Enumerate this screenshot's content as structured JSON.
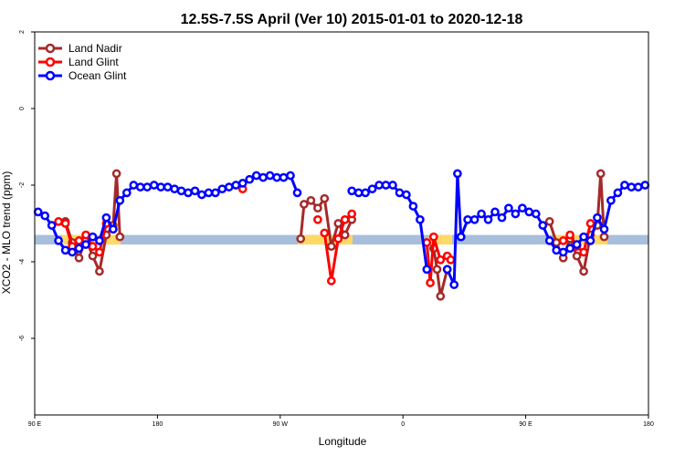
{
  "chart_data": {
    "type": "line",
    "title": "12.5S-7.5S April (Ver 10)   2015-01-01 to 2020-12-18",
    "xlabel": "Longitude",
    "ylabel": "XCO2 - MLO trend (ppm)",
    "x_axis": {
      "ticks": [
        {
          "value": 90,
          "label": "90 E"
        },
        {
          "value": 180,
          "label": "180"
        },
        {
          "value": 270,
          "label": "90 W"
        },
        {
          "value": 360,
          "label": "0"
        },
        {
          "value": 450,
          "label": "90 E"
        },
        {
          "value": 540,
          "label": "180"
        }
      ],
      "xlim": [
        90,
        540
      ]
    },
    "y_axis": {
      "ticks": [
        {
          "value": 2,
          "label": "2"
        },
        {
          "value": 0,
          "label": "0"
        },
        {
          "value": -2,
          "label": "-2"
        },
        {
          "value": -4,
          "label": "-4"
        },
        {
          "value": -6,
          "label": "-6"
        }
      ],
      "ylim": [
        -8,
        2
      ]
    },
    "grid": false,
    "legend": "top-left",
    "colors": {
      "land_nadir": "#a52a2a",
      "land_glint": "#ff0000",
      "ocean_glint": "#0000ff",
      "ocean_band": "#a8bfdc",
      "land_band": "#ffd966"
    },
    "background_bands": [
      {
        "surface": "ocean",
        "x_start": 90,
        "x_end": 540,
        "y_min": -3.55,
        "y_max": -3.3
      },
      {
        "surface": "land",
        "x_start": 110,
        "x_end": 153,
        "y_min": -3.55,
        "y_max": -3.3
      },
      {
        "surface": "land",
        "x_start": 283,
        "x_end": 323,
        "y_min": -3.55,
        "y_max": -3.3
      },
      {
        "surface": "land",
        "x_start": 379,
        "x_end": 396,
        "y_min": -3.55,
        "y_max": -3.3
      },
      {
        "surface": "land",
        "x_start": 470,
        "x_end": 510,
        "y_min": -3.55,
        "y_max": -3.3
      }
    ],
    "series": [
      {
        "name": "Land Nadir",
        "segments": [
          {
            "x": [
              112.5,
              117.5,
              122.5,
              127.5,
              132.5,
              137.5,
              142.5,
              147.5,
              150,
              152.5
            ],
            "y": [
              -2.95,
              -3.5,
              -3.9,
              -3.4,
              -3.85,
              -4.25,
              -3.3,
              -3.05,
              -1.7,
              -3.35
            ]
          },
          {
            "x": [
              285,
              287.5,
              292.5,
              297.5,
              302.5,
              307.5,
              312.5,
              317.5,
              322.5
            ],
            "y": [
              -3.4,
              -2.5,
              -2.4,
              -2.6,
              -2.35,
              -3.6,
              -3.0,
              -3.3,
              -2.9
            ]
          },
          {
            "x": [
              382.5,
              385,
              387.5,
              392.5
            ],
            "y": [
              -3.65,
              -4.2,
              -4.9,
              -4.2
            ]
          },
          {
            "x": [
              467.5,
              472.5,
              477.5,
              482.5,
              487.5,
              492.5,
              497.5,
              502.5,
              505,
              507.5
            ],
            "y": [
              -2.95,
              -3.5,
              -3.9,
              -3.4,
              -3.85,
              -4.25,
              -3.3,
              -3.05,
              -1.7,
              -3.35
            ]
          }
        ]
      },
      {
        "name": "Land Glint",
        "segments": [
          {
            "x": [
              107.5,
              112.5,
              117.5,
              122.5,
              127.5,
              132.5,
              137.5,
              142.5
            ],
            "y": [
              -2.95,
              -3.0,
              -3.6,
              -3.45,
              -3.3,
              -3.6,
              -3.75,
              -3.0
            ]
          },
          {
            "x": [
              242.5
            ],
            "y": [
              -2.1
            ]
          },
          {
            "x": [
              297.5
            ],
            "y": [
              -2.9
            ]
          },
          {
            "x": [
              302.5,
              307.5,
              312.5,
              317.5,
              322.5
            ],
            "y": [
              -3.25,
              -4.5,
              -3.4,
              -2.9,
              -2.75
            ]
          },
          {
            "x": [
              377.5,
              380,
              382.5,
              387.5,
              392.5,
              395
            ],
            "y": [
              -3.5,
              -4.55,
              -3.35,
              -3.95,
              -3.85,
              -3.95
            ]
          },
          {
            "x": [
              477.5,
              482.5,
              487.5,
              492.5,
              497.5
            ],
            "y": [
              -3.45,
              -3.3,
              -3.6,
              -3.75,
              -3.0
            ]
          }
        ]
      },
      {
        "name": "Ocean Glint",
        "segments": [
          {
            "x": [
              92.5,
              97.5,
              102.5,
              107.5,
              112.5,
              117.5,
              122.5,
              127.5,
              132.5,
              137.5,
              142.5,
              147.5,
              152.5,
              157.5,
              162.5,
              167.5,
              172.5,
              177.5,
              182.5,
              187.5,
              192.5,
              197.5,
              202.5,
              207.5,
              212.5,
              217.5,
              222.5,
              227.5,
              232.5,
              237.5,
              242.5,
              247.5,
              252.5,
              257.5,
              262.5,
              267.5,
              272.5,
              277.5,
              282.5
            ],
            "y": [
              -2.7,
              -2.8,
              -3.05,
              -3.45,
              -3.7,
              -3.75,
              -3.65,
              -3.55,
              -3.35,
              -3.45,
              -2.85,
              -3.15,
              -2.4,
              -2.2,
              -2.0,
              -2.05,
              -2.05,
              -2.0,
              -2.05,
              -2.05,
              -2.1,
              -2.15,
              -2.2,
              -2.15,
              -2.25,
              -2.2,
              -2.2,
              -2.1,
              -2.05,
              -2.0,
              -1.95,
              -1.85,
              -1.75,
              -1.8,
              -1.75,
              -1.8,
              -1.8,
              -1.75,
              -2.2
            ]
          },
          {
            "x": [
              322.5,
              327.5,
              332.5,
              337.5,
              342.5,
              347.5,
              352.5,
              357.5,
              362.5,
              367.5,
              372.5,
              377.5
            ],
            "y": [
              -2.15,
              -2.2,
              -2.2,
              -2.1,
              -2.0,
              -2.0,
              -2.0,
              -2.2,
              -2.25,
              -2.55,
              -2.9,
              -4.2
            ]
          },
          {
            "x": [
              392.5,
              397.5,
              400,
              402.5
            ],
            "y": [
              -4.2,
              -4.6,
              -1.7,
              -3.35
            ]
          },
          {
            "x": [
              402.5,
              407.5,
              412.5,
              417.5,
              422.5,
              427.5,
              432.5,
              437.5,
              442.5,
              447.5,
              452.5,
              457.5,
              462.5,
              467.5,
              472.5,
              477.5,
              482.5,
              487.5,
              492.5,
              497.5,
              502.5,
              507.5,
              512.5,
              517.5,
              522.5,
              527.5,
              532.5,
              537.5
            ],
            "y": [
              -3.35,
              -2.9,
              -2.9,
              -2.75,
              -2.9,
              -2.7,
              -2.85,
              -2.6,
              -2.75,
              -2.6,
              -2.7,
              -2.75,
              -3.05,
              -3.45,
              -3.7,
              -3.75,
              -3.65,
              -3.55,
              -3.35,
              -3.45,
              -2.85,
              -3.15,
              -2.4,
              -2.2,
              -2.0,
              -2.05,
              -2.05,
              -2.0
            ]
          }
        ]
      }
    ]
  }
}
